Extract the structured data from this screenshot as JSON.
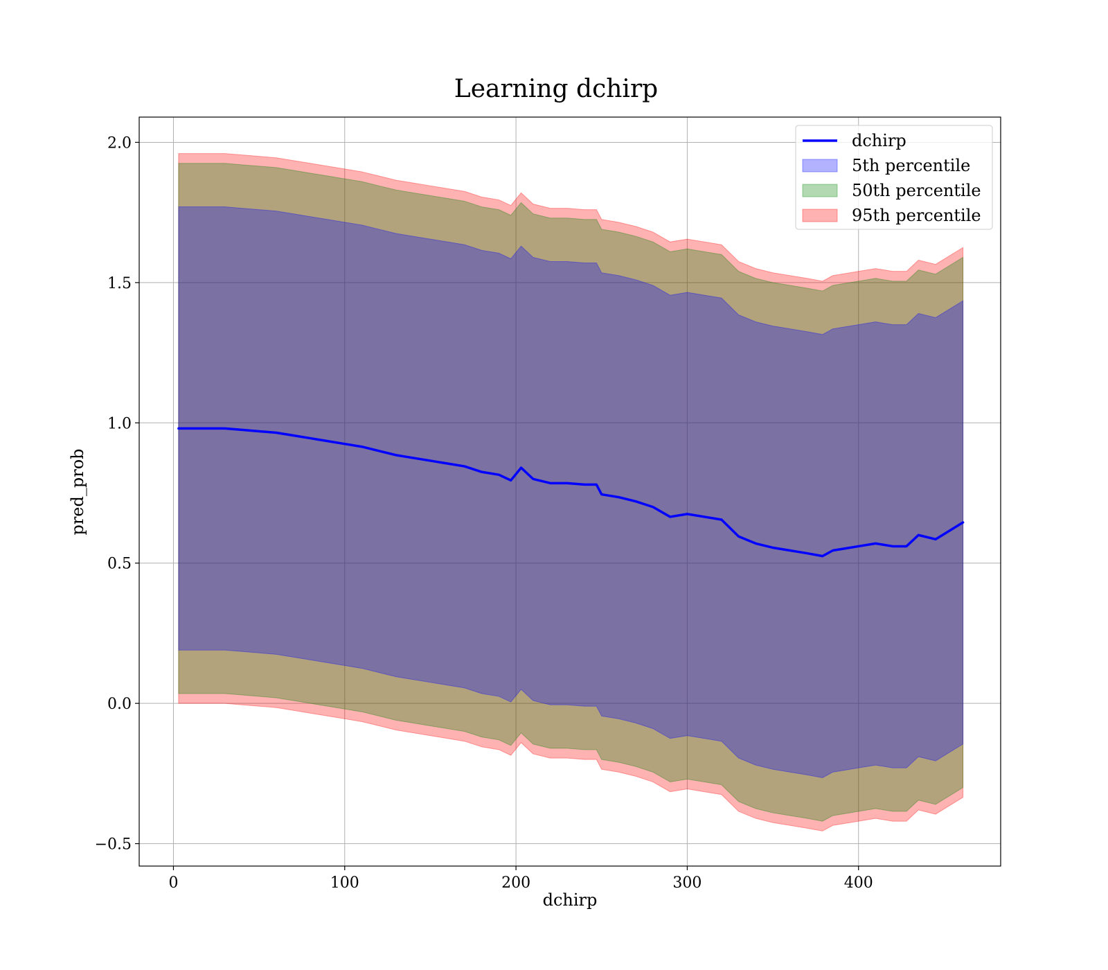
{
  "chart_data": {
    "type": "area",
    "title": "Learning dchirp",
    "xlabel": "dchirp",
    "ylabel": "pred_prob",
    "xlim": [
      -20,
      483
    ],
    "ylim": [
      -0.58,
      2.09
    ],
    "xticks": [
      0,
      100,
      200,
      300,
      400
    ],
    "yticks": [
      -0.5,
      0.0,
      0.5,
      1.0,
      1.5,
      2.0
    ],
    "xtick_labels": [
      "0",
      "100",
      "200",
      "300",
      "400"
    ],
    "ytick_labels": [
      "−0.5",
      "0.0",
      "0.5",
      "1.0",
      "1.5",
      "2.0"
    ],
    "grid": true,
    "legend_position": "top-right",
    "legend": [
      {
        "label": "dchirp",
        "kind": "line",
        "color": "#0000ff"
      },
      {
        "label": "5th percentile",
        "kind": "patch",
        "color": "#0000ff"
      },
      {
        "label": "50th percentile",
        "kind": "patch",
        "color": "#008000"
      },
      {
        "label": "95th percentile",
        "kind": "patch",
        "color": "#ff0000"
      }
    ],
    "x": [
      3,
      10,
      20,
      30,
      40,
      50,
      60,
      70,
      80,
      90,
      100,
      110,
      120,
      130,
      140,
      150,
      160,
      170,
      180,
      190,
      197,
      203,
      210,
      220,
      230,
      240,
      247,
      250,
      260,
      270,
      280,
      290,
      300,
      310,
      320,
      330,
      340,
      350,
      360,
      370,
      379,
      385,
      390,
      400,
      410,
      420,
      428,
      435,
      445,
      461
    ],
    "series": [
      {
        "name": "dchirp",
        "kind": "line",
        "color": "#0000ff",
        "values": [
          0.98,
          0.98,
          0.98,
          0.98,
          0.975,
          0.97,
          0.965,
          0.955,
          0.945,
          0.935,
          0.925,
          0.915,
          0.9,
          0.885,
          0.875,
          0.865,
          0.855,
          0.845,
          0.825,
          0.815,
          0.795,
          0.84,
          0.8,
          0.785,
          0.785,
          0.78,
          0.78,
          0.745,
          0.735,
          0.72,
          0.7,
          0.665,
          0.675,
          0.665,
          0.655,
          0.595,
          0.57,
          0.555,
          0.545,
          0.535,
          0.525,
          0.545,
          0.55,
          0.56,
          0.57,
          0.56,
          0.56,
          0.6,
          0.585,
          0.645
        ]
      },
      {
        "name": "5th percentile",
        "kind": "band",
        "color": "#0000ff",
        "lower": [
          0.19,
          0.19,
          0.19,
          0.19,
          0.185,
          0.18,
          0.175,
          0.165,
          0.155,
          0.145,
          0.135,
          0.125,
          0.11,
          0.095,
          0.085,
          0.075,
          0.065,
          0.055,
          0.035,
          0.025,
          0.005,
          0.05,
          0.01,
          -0.005,
          -0.005,
          -0.01,
          -0.01,
          -0.045,
          -0.055,
          -0.07,
          -0.09,
          -0.125,
          -0.115,
          -0.125,
          -0.135,
          -0.195,
          -0.22,
          -0.235,
          -0.245,
          -0.255,
          -0.265,
          -0.245,
          -0.24,
          -0.23,
          -0.22,
          -0.23,
          -0.23,
          -0.19,
          -0.205,
          -0.145
        ],
        "upper": [
          1.77,
          1.77,
          1.77,
          1.77,
          1.765,
          1.76,
          1.755,
          1.745,
          1.735,
          1.725,
          1.715,
          1.705,
          1.69,
          1.675,
          1.665,
          1.655,
          1.645,
          1.635,
          1.615,
          1.605,
          1.585,
          1.63,
          1.59,
          1.575,
          1.575,
          1.57,
          1.57,
          1.535,
          1.525,
          1.51,
          1.49,
          1.455,
          1.465,
          1.455,
          1.445,
          1.385,
          1.36,
          1.345,
          1.335,
          1.325,
          1.315,
          1.335,
          1.34,
          1.35,
          1.36,
          1.35,
          1.35,
          1.39,
          1.375,
          1.435
        ]
      },
      {
        "name": "50th percentile",
        "kind": "band",
        "color": "#008000",
        "lower": [
          0.035,
          0.035,
          0.035,
          0.035,
          0.03,
          0.025,
          0.02,
          0.01,
          0.0,
          -0.01,
          -0.02,
          -0.03,
          -0.045,
          -0.06,
          -0.07,
          -0.08,
          -0.09,
          -0.1,
          -0.12,
          -0.13,
          -0.15,
          -0.105,
          -0.145,
          -0.16,
          -0.16,
          -0.165,
          -0.165,
          -0.2,
          -0.21,
          -0.225,
          -0.245,
          -0.28,
          -0.27,
          -0.28,
          -0.29,
          -0.35,
          -0.375,
          -0.39,
          -0.4,
          -0.41,
          -0.42,
          -0.4,
          -0.395,
          -0.385,
          -0.375,
          -0.385,
          -0.385,
          -0.345,
          -0.36,
          -0.3
        ],
        "upper": [
          1.925,
          1.925,
          1.925,
          1.925,
          1.92,
          1.915,
          1.91,
          1.9,
          1.89,
          1.88,
          1.87,
          1.86,
          1.845,
          1.83,
          1.82,
          1.81,
          1.8,
          1.79,
          1.77,
          1.76,
          1.74,
          1.785,
          1.745,
          1.73,
          1.73,
          1.725,
          1.725,
          1.69,
          1.68,
          1.665,
          1.645,
          1.61,
          1.62,
          1.61,
          1.6,
          1.54,
          1.515,
          1.5,
          1.49,
          1.48,
          1.47,
          1.49,
          1.495,
          1.505,
          1.515,
          1.505,
          1.505,
          1.545,
          1.53,
          1.59
        ]
      },
      {
        "name": "95th percentile",
        "kind": "band",
        "color": "#ff0000",
        "lower": [
          0.0,
          0.0,
          0.0,
          0.0,
          -0.005,
          -0.01,
          -0.015,
          -0.025,
          -0.035,
          -0.045,
          -0.055,
          -0.065,
          -0.08,
          -0.095,
          -0.105,
          -0.115,
          -0.125,
          -0.135,
          -0.155,
          -0.165,
          -0.185,
          -0.14,
          -0.18,
          -0.195,
          -0.195,
          -0.2,
          -0.2,
          -0.235,
          -0.245,
          -0.26,
          -0.28,
          -0.315,
          -0.305,
          -0.315,
          -0.325,
          -0.385,
          -0.41,
          -0.425,
          -0.435,
          -0.445,
          -0.455,
          -0.435,
          -0.43,
          -0.42,
          -0.41,
          -0.42,
          -0.42,
          -0.38,
          -0.395,
          -0.335
        ],
        "upper": [
          1.96,
          1.96,
          1.96,
          1.96,
          1.955,
          1.95,
          1.945,
          1.935,
          1.925,
          1.915,
          1.905,
          1.895,
          1.88,
          1.865,
          1.855,
          1.845,
          1.835,
          1.825,
          1.805,
          1.795,
          1.775,
          1.82,
          1.78,
          1.765,
          1.765,
          1.76,
          1.76,
          1.725,
          1.715,
          1.7,
          1.68,
          1.645,
          1.655,
          1.645,
          1.635,
          1.575,
          1.55,
          1.535,
          1.525,
          1.515,
          1.505,
          1.525,
          1.53,
          1.54,
          1.55,
          1.54,
          1.54,
          1.58,
          1.565,
          1.625
        ]
      }
    ]
  }
}
